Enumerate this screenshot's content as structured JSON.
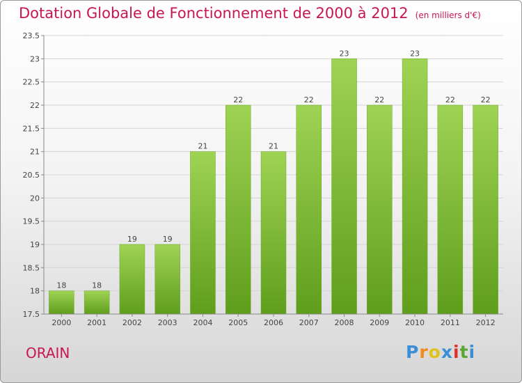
{
  "chart_data": {
    "type": "bar",
    "title": "Dotation Globale de Fonctionnement de 2000 à 2012",
    "unit": "(en milliers d'€)",
    "categories": [
      "2000",
      "2001",
      "2002",
      "2003",
      "2004",
      "2005",
      "2006",
      "2007",
      "2008",
      "2009",
      "2010",
      "2011",
      "2012"
    ],
    "values": [
      18,
      18,
      19,
      19,
      21,
      22,
      21,
      22,
      23,
      22,
      23,
      22,
      22
    ],
    "ylim": [
      17.5,
      23.5
    ],
    "yticks": [
      "17.5",
      "18",
      "18.5",
      "19",
      "19.5",
      "20",
      "20.5",
      "21",
      "21.5",
      "22",
      "22.5",
      "23",
      "23.5"
    ],
    "grid": true,
    "bar_color": "#7cbc34"
  },
  "commune": "ORAIN",
  "logo": {
    "letters": [
      "P",
      "r",
      "o",
      "x",
      "i",
      "t",
      "i"
    ],
    "colors": [
      "#3a8fd6",
      "#f08a1c",
      "#e0c21a",
      "#3a8fd6",
      "#e0302a",
      "#5aa832",
      "#3a8fd6"
    ]
  }
}
